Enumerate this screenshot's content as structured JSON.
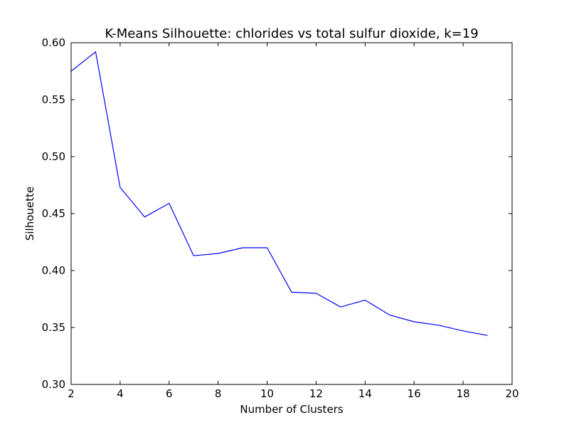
{
  "chart_data": {
    "type": "line",
    "title": "K-Means Silhouette: chlorides vs total sulfur dioxide, k=19",
    "xlabel": "Number of Clusters",
    "ylabel": "Silhouette",
    "xlim": [
      2,
      20
    ],
    "ylim": [
      0.3,
      0.6
    ],
    "xticks": [
      "2",
      "4",
      "6",
      "8",
      "10",
      "12",
      "14",
      "16",
      "18",
      "20"
    ],
    "yticks": [
      "0.30",
      "0.35",
      "0.40",
      "0.45",
      "0.50",
      "0.55",
      "0.60"
    ],
    "grid": false,
    "legend": "none",
    "series": [
      {
        "color": "#0000ff",
        "x": [
          2,
          3,
          4,
          5,
          6,
          7,
          8,
          9,
          10,
          11,
          12,
          13,
          14,
          15,
          16,
          17,
          18,
          19
        ],
        "values": [
          0.575,
          0.592,
          0.473,
          0.447,
          0.459,
          0.413,
          0.415,
          0.42,
          0.42,
          0.381,
          0.38,
          0.368,
          0.374,
          0.361,
          0.355,
          0.352,
          0.347,
          0.343
        ]
      }
    ]
  }
}
